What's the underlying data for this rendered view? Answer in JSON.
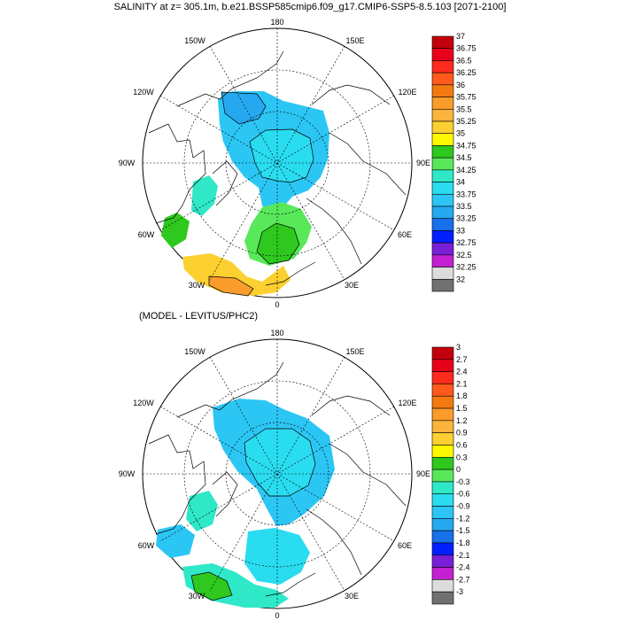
{
  "title": "SALINITY at z= 305.1m, b.e21.BSSP585cmip6.f09_g17.CMIP6-SSP5-8.5.103 [2071-2100]",
  "subtitle": "(MODEL - LEVITUS/PHC2)",
  "longitude_labels": {
    "top": "180",
    "upper_left": "150W",
    "upper_right": "150E",
    "mid_upper_left": "120W",
    "mid_upper_right": "120E",
    "left": "90W",
    "right": "90E",
    "mid_lower_left": "60W",
    "mid_lower_right": "60E",
    "lower_left": "30W",
    "lower_right": "30E",
    "bottom": "0"
  },
  "colorbar1": {
    "labels": [
      "37",
      "36.75",
      "36.5",
      "36.25",
      "36",
      "35.75",
      "35.5",
      "35.25",
      "35",
      "34.75",
      "34.5",
      "34.25",
      "34",
      "33.75",
      "33.5",
      "33.25",
      "33",
      "32.75",
      "32.5",
      "32.25",
      "32"
    ],
    "colors": [
      "#c4000c",
      "#e8001a",
      "#ff2a1e",
      "#ff5a1a",
      "#f47a10",
      "#f99c2c",
      "#fbb43c",
      "#fbd030",
      "#fdf800",
      "#2ec81e",
      "#58e85a",
      "#2ee8c8",
      "#2adcf0",
      "#2cc6f4",
      "#26a8f0",
      "#1870ea",
      "#0020ff",
      "#7a1fd8",
      "#c41fd0",
      "#dcdcdc",
      "#707070"
    ]
  },
  "colorbar2": {
    "labels": [
      "3",
      "2.7",
      "2.4",
      "2.1",
      "1.8",
      "1.5",
      "1.2",
      "0.9",
      "0.6",
      "0.3",
      "0",
      "-0.3",
      "-0.6",
      "-0.9",
      "-1.2",
      "-1.5",
      "-1.8",
      "-2.1",
      "-2.4",
      "-2.7",
      "-3"
    ],
    "colors": [
      "#c4000c",
      "#e8001a",
      "#ff2a1e",
      "#ff5a1a",
      "#f47a10",
      "#f99c2c",
      "#fbb43c",
      "#fbd030",
      "#fdf800",
      "#2ec81e",
      "#58e85a",
      "#2ee8c8",
      "#2adcf0",
      "#2cc6f4",
      "#26a8f0",
      "#1870ea",
      "#0020ff",
      "#7a1fd8",
      "#c41fd0",
      "#dcdcdc",
      "#707070"
    ]
  },
  "colors": {
    "land_outline": "#000000",
    "grid": "#000000"
  }
}
